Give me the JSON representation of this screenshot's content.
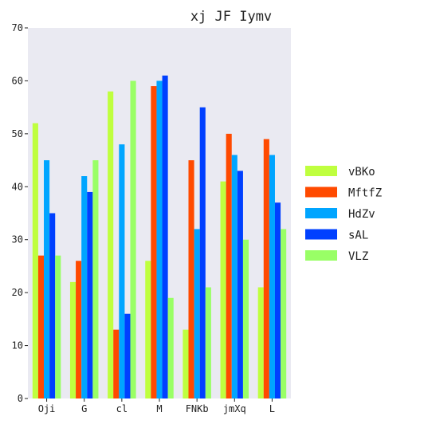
{
  "chart_data": {
    "type": "bar",
    "title": "xj JF  Iymv",
    "xlabel": "",
    "ylabel": "",
    "categories": [
      "Oji",
      "G",
      "cl",
      "M",
      "FNKb",
      "jmXq",
      "L"
    ],
    "ylim": [
      0,
      70
    ],
    "yticks": [
      0,
      10,
      20,
      30,
      40,
      50,
      60,
      70
    ],
    "grid": false,
    "legend_position": "right",
    "series": [
      {
        "name": "vBKo",
        "color": "#bfff3f",
        "values": [
          52,
          22,
          58,
          26,
          13,
          41,
          21
        ]
      },
      {
        "name": "MftfZ",
        "color": "#ff4a00",
        "values": [
          27,
          26,
          13,
          59,
          45,
          50,
          49
        ]
      },
      {
        "name": "HdZv",
        "color": "#00a5ff",
        "values": [
          45,
          42,
          48,
          60,
          32,
          46,
          46
        ]
      },
      {
        "name": "sAL",
        "color": "#0040ff",
        "values": [
          35,
          39,
          16,
          61,
          55,
          43,
          37
        ]
      },
      {
        "name": "VLZ",
        "color": "#99ff66",
        "values": [
          27,
          45,
          60,
          19,
          21,
          30,
          32
        ]
      }
    ],
    "plot_background": "#eaeaf2"
  }
}
